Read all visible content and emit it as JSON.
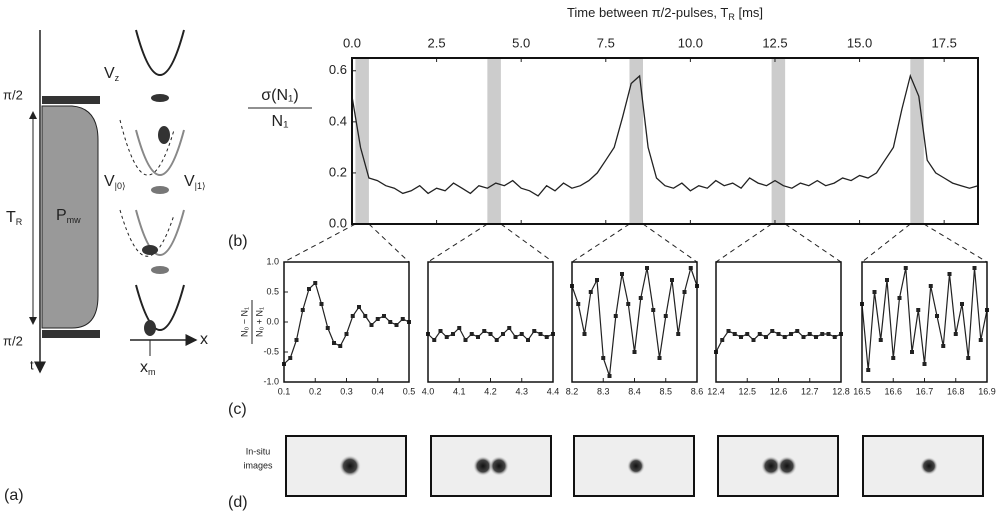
{
  "panel_labels": [
    "(a)",
    "(b)",
    "(c)",
    "(d)"
  ],
  "diagram": {
    "pulse_top": "π/2",
    "pulse_bottom": "π/2",
    "duration": {
      "text": "T",
      "sub": "R"
    },
    "power": {
      "text": "P",
      "sub": "mw"
    },
    "time_axis": "t",
    "potential_z": {
      "text": "V",
      "sub": "z"
    },
    "potential_0": {
      "text": "V",
      "sub": "|0⟩"
    },
    "potential_1": {
      "text": "V",
      "sub": "|1⟩"
    },
    "position_axis": "x",
    "position_marker": {
      "text": "x",
      "sub": "m"
    }
  },
  "images": {
    "label": [
      "In-situ",
      "images"
    ]
  },
  "chart_data": [
    {
      "type": "line",
      "x_label": {
        "text": "Time between π/2-pulses, T",
        "sub": "R",
        "unit": " [ms]"
      },
      "y_label": {
        "numerator": "σ(N₁)",
        "denominator": "N₁"
      },
      "x": [
        0,
        0.25,
        0.5,
        0.75,
        1,
        1.25,
        1.5,
        1.75,
        2,
        2.25,
        2.5,
        2.75,
        3,
        3.25,
        3.5,
        3.75,
        4,
        4.25,
        4.5,
        4.75,
        5,
        5.25,
        5.5,
        5.75,
        6,
        6.25,
        6.5,
        6.75,
        7,
        7.25,
        7.5,
        7.75,
        8,
        8.25,
        8.5,
        8.75,
        9,
        9.25,
        9.5,
        9.75,
        10,
        10.25,
        10.5,
        10.75,
        11,
        11.25,
        11.5,
        11.75,
        12,
        12.25,
        12.5,
        12.75,
        13,
        13.25,
        13.5,
        13.75,
        14,
        14.25,
        14.5,
        14.75,
        15,
        15.25,
        15.5,
        15.75,
        16,
        16.25,
        16.5,
        16.75,
        17,
        17.25,
        17.5,
        17.75,
        18,
        18.25,
        18.5
      ],
      "values": [
        0.5,
        0.3,
        0.18,
        0.17,
        0.15,
        0.14,
        0.12,
        0.13,
        0.15,
        0.12,
        0.14,
        0.13,
        0.16,
        0.14,
        0.12,
        0.15,
        0.14,
        0.16,
        0.15,
        0.17,
        0.14,
        0.13,
        0.11,
        0.15,
        0.13,
        0.16,
        0.14,
        0.15,
        0.17,
        0.2,
        0.25,
        0.3,
        0.42,
        0.55,
        0.58,
        0.3,
        0.18,
        0.15,
        0.14,
        0.16,
        0.13,
        0.15,
        0.14,
        0.17,
        0.15,
        0.16,
        0.14,
        0.18,
        0.16,
        0.15,
        0.17,
        0.15,
        0.14,
        0.16,
        0.15,
        0.17,
        0.15,
        0.16,
        0.18,
        0.17,
        0.19,
        0.18,
        0.2,
        0.25,
        0.3,
        0.45,
        0.58,
        0.5,
        0.25,
        0.2,
        0.18,
        0.16,
        0.15,
        0.14,
        0.15
      ],
      "color": "#222222",
      "xlim": [
        0,
        18.5
      ],
      "xticks": [
        {
          "value": 0,
          "label": "0.0"
        },
        2.5,
        {
          "value": 5,
          "label": "5.0"
        },
        7.5,
        {
          "value": 10,
          "label": "10.0"
        },
        12.5,
        {
          "value": 15,
          "label": "15.0"
        },
        17.5
      ],
      "ylim": [
        0,
        0.65
      ],
      "yticks": [
        {
          "value": 0,
          "label": "0.0"
        },
        0.2,
        0.4,
        0.6
      ]
    },
    {
      "type": "line",
      "markers": true,
      "color": "#222222",
      "y_label": {
        "numerator": "N₀ − N₁",
        "denominator": "N₀ + N₁"
      },
      "x": [
        0.1,
        0.12,
        0.14,
        0.16,
        0.18,
        0.2,
        0.22,
        0.24,
        0.26,
        0.28,
        0.3,
        0.32,
        0.34,
        0.36,
        0.38,
        0.4,
        0.42,
        0.44,
        0.46,
        0.48,
        0.5
      ],
      "values": [
        -0.7,
        -0.6,
        -0.3,
        0.2,
        0.55,
        0.65,
        0.3,
        -0.1,
        -0.35,
        -0.4,
        -0.2,
        0.1,
        0.25,
        0.1,
        -0.05,
        0.05,
        0.1,
        0,
        -0.05,
        0.05,
        0
      ],
      "xlim": [
        0.1,
        0.5
      ],
      "xticks": [
        0.1,
        0.2,
        0.3,
        0.4,
        0.5
      ],
      "ylim": [
        -1,
        1
      ],
      "yticks": [
        {
          "value": -1,
          "label": "-1.0"
        },
        -0.5,
        {
          "value": 0,
          "label": "0.0"
        },
        0.5,
        {
          "value": 1,
          "label": "1.0"
        }
      ]
    },
    {
      "type": "line",
      "markers": true,
      "color": "#222222",
      "x": [
        4,
        4.02,
        4.04,
        4.06,
        4.08,
        4.1,
        4.12,
        4.14,
        4.16,
        4.18,
        4.2,
        4.22,
        4.24,
        4.26,
        4.28,
        4.3,
        4.32,
        4.34,
        4.36,
        4.38,
        4.4
      ],
      "values": [
        -0.2,
        -0.3,
        -0.15,
        -0.25,
        -0.2,
        -0.1,
        -0.3,
        -0.2,
        -0.25,
        -0.15,
        -0.2,
        -0.3,
        -0.2,
        -0.1,
        -0.25,
        -0.2,
        -0.3,
        -0.15,
        -0.2,
        -0.25,
        -0.2
      ],
      "xlim": [
        4,
        4.4
      ],
      "xticks": [
        {
          "value": 4,
          "label": "4.0"
        },
        4.1,
        4.2,
        4.3,
        4.4
      ],
      "ylim": [
        -1,
        1
      ]
    },
    {
      "type": "line",
      "markers": true,
      "color": "#222222",
      "x": [
        8.2,
        8.22,
        8.24,
        8.26,
        8.28,
        8.3,
        8.32,
        8.34,
        8.36,
        8.38,
        8.4,
        8.42,
        8.44,
        8.46,
        8.48,
        8.5,
        8.52,
        8.54,
        8.56,
        8.58,
        8.6
      ],
      "values": [
        0.6,
        0.3,
        -0.2,
        0.5,
        0.7,
        -0.6,
        -0.9,
        0.1,
        0.8,
        0.3,
        -0.5,
        0.4,
        0.9,
        0.2,
        -0.6,
        0.1,
        0.7,
        -0.2,
        0.5,
        0.9,
        0.6
      ],
      "xlim": [
        8.2,
        8.6
      ],
      "xticks": [
        8.2,
        8.3,
        8.4,
        8.5,
        8.6
      ],
      "ylim": [
        -1,
        1
      ]
    },
    {
      "type": "line",
      "markers": true,
      "color": "#222222",
      "x": [
        12.4,
        12.42,
        12.44,
        12.46,
        12.48,
        12.5,
        12.52,
        12.54,
        12.56,
        12.58,
        12.6,
        12.62,
        12.64,
        12.66,
        12.68,
        12.7,
        12.72,
        12.74,
        12.76,
        12.78,
        12.8
      ],
      "values": [
        -0.5,
        -0.3,
        -0.15,
        -0.2,
        -0.25,
        -0.2,
        -0.3,
        -0.2,
        -0.25,
        -0.15,
        -0.2,
        -0.25,
        -0.2,
        -0.15,
        -0.25,
        -0.2,
        -0.25,
        -0.2,
        -0.2,
        -0.25,
        -0.2
      ],
      "xlim": [
        12.4,
        12.8
      ],
      "xticks": [
        12.4,
        12.5,
        12.6,
        12.7,
        12.8
      ],
      "ylim": [
        -1,
        1
      ]
    },
    {
      "type": "line",
      "markers": true,
      "color": "#222222",
      "x": [
        16.5,
        16.52,
        16.54,
        16.56,
        16.58,
        16.6,
        16.62,
        16.64,
        16.66,
        16.68,
        16.7,
        16.72,
        16.74,
        16.76,
        16.78,
        16.8,
        16.82,
        16.84,
        16.86,
        16.88,
        16.9
      ],
      "values": [
        0.3,
        -0.8,
        0.5,
        -0.3,
        0.7,
        -0.6,
        0.4,
        0.9,
        -0.5,
        0.2,
        -0.7,
        0.6,
        0.1,
        -0.4,
        0.8,
        -0.2,
        0.3,
        -0.6,
        0.9,
        -0.3,
        0.2
      ],
      "xlim": [
        16.5,
        16.9
      ],
      "xticks": [
        16.5,
        16.6,
        16.7,
        16.8,
        16.9
      ],
      "ylim": [
        -1,
        1
      ]
    }
  ]
}
